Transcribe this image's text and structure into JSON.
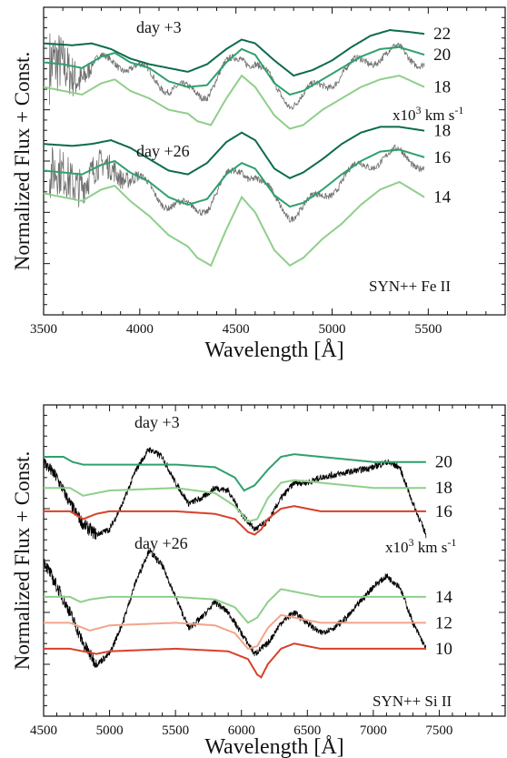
{
  "chart_data": [
    {
      "type": "line",
      "panel": "top",
      "ylabel": "Normalized Flux + Const.",
      "xlabel": "Wavelength [Å]",
      "xlim": [
        3500,
        5900
      ],
      "x_ticks": [
        3500,
        4000,
        4500,
        5000,
        5500
      ],
      "x_tick_labels": [
        "3500",
        "4000",
        "4500",
        "5000",
        "5500"
      ],
      "annotation": "SYN++ Fe II",
      "velocity_unit_base": "x10",
      "velocity_unit_exp": "3",
      "velocity_unit_tail": " km s",
      "velocity_unit_exp2": "-1",
      "epochs": [
        {
          "label": "day +3",
          "observed": {
            "color": "#707070",
            "x_range": [
              3530,
              5480
            ],
            "noisy_below": 3750
          },
          "models": [
            {
              "velocity": "22",
              "color": "#0d6b4e",
              "x": [
                3500,
                3650,
                3750,
                3850,
                3950,
                4050,
                4150,
                4250,
                4350,
                4450,
                4530,
                4600,
                4700,
                4800,
                4900,
                5000,
                5100,
                5200,
                5300,
                5400,
                5480
              ],
              "y": [
                0.93,
                0.92,
                0.93,
                0.9,
                0.85,
                0.82,
                0.8,
                0.78,
                0.82,
                0.9,
                0.95,
                0.93,
                0.84,
                0.76,
                0.79,
                0.84,
                0.91,
                0.97,
                1.0,
                0.99,
                0.98
              ]
            },
            {
              "velocity": "20",
              "color": "#2fa06d",
              "x": [
                3500,
                3600,
                3700,
                3800,
                3870,
                3950,
                4050,
                4150,
                4250,
                4350,
                4450,
                4530,
                4600,
                4700,
                4780,
                4850,
                4950,
                5050,
                5150,
                5250,
                5350,
                5480
              ],
              "y": [
                0.83,
                0.82,
                0.8,
                0.86,
                0.88,
                0.83,
                0.8,
                0.73,
                0.7,
                0.71,
                0.83,
                0.9,
                0.87,
                0.72,
                0.66,
                0.68,
                0.74,
                0.8,
                0.86,
                0.9,
                0.91,
                0.87
              ]
            },
            {
              "velocity": "18",
              "color": "#8fcf8a",
              "x": [
                3500,
                3600,
                3700,
                3800,
                3870,
                3950,
                4050,
                4150,
                4250,
                4300,
                4370,
                4450,
                4530,
                4600,
                4700,
                4780,
                4850,
                4950,
                5050,
                5150,
                5250,
                5350,
                5480
              ],
              "y": [
                0.7,
                0.68,
                0.66,
                0.72,
                0.74,
                0.68,
                0.64,
                0.58,
                0.56,
                0.52,
                0.5,
                0.64,
                0.76,
                0.7,
                0.55,
                0.48,
                0.5,
                0.58,
                0.64,
                0.7,
                0.74,
                0.76,
                0.7
              ]
            }
          ]
        },
        {
          "label": "day +26",
          "observed": {
            "color": "#707070",
            "x_range": [
              3530,
              5480
            ],
            "noisy_below": 4000
          },
          "models": [
            {
              "velocity": "18",
              "color": "#0d6b4e",
              "x": [
                3500,
                3650,
                3750,
                3850,
                3950,
                4050,
                4150,
                4250,
                4350,
                4450,
                4530,
                4600,
                4700,
                4780,
                4850,
                4950,
                5050,
                5150,
                5250,
                5350,
                5480
              ],
              "y": [
                0.4,
                0.39,
                0.4,
                0.42,
                0.38,
                0.32,
                0.26,
                0.24,
                0.3,
                0.41,
                0.46,
                0.42,
                0.27,
                0.22,
                0.25,
                0.32,
                0.4,
                0.46,
                0.49,
                0.49,
                0.47
              ]
            },
            {
              "velocity": "16",
              "color": "#2fa06d",
              "x": [
                3500,
                3600,
                3700,
                3800,
                3870,
                3950,
                4050,
                4150,
                4250,
                4350,
                4450,
                4530,
                4600,
                4700,
                4780,
                4850,
                4950,
                5050,
                5150,
                5250,
                5350,
                5480
              ],
              "y": [
                0.26,
                0.25,
                0.24,
                0.29,
                0.31,
                0.25,
                0.2,
                0.12,
                0.08,
                0.11,
                0.24,
                0.3,
                0.27,
                0.13,
                0.07,
                0.09,
                0.16,
                0.24,
                0.31,
                0.36,
                0.37,
                0.33
              ]
            },
            {
              "velocity": "14",
              "color": "#8fcf8a",
              "x": [
                3500,
                3600,
                3700,
                3800,
                3870,
                3950,
                4050,
                4150,
                4250,
                4300,
                4370,
                4450,
                4530,
                4600,
                4700,
                4780,
                4850,
                4950,
                5050,
                5150,
                5250,
                5350,
                5480
              ],
              "y": [
                0.14,
                0.12,
                0.1,
                0.16,
                0.18,
                0.1,
                0.02,
                -0.08,
                -0.14,
                -0.2,
                -0.24,
                -0.05,
                0.12,
                0.04,
                -0.16,
                -0.24,
                -0.2,
                -0.1,
                -0.02,
                0.08,
                0.16,
                0.2,
                0.12
              ]
            }
          ]
        }
      ]
    },
    {
      "type": "line",
      "panel": "bottom",
      "ylabel": "Normalized Flux + Const.",
      "xlabel": "Wavelength [Å]",
      "xlim": [
        4500,
        8000
      ],
      "x_ticks": [
        4500,
        5000,
        5500,
        6000,
        6500,
        7000,
        7500
      ],
      "x_tick_labels": [
        "4500",
        "5000",
        "5500",
        "6000",
        "6500",
        "7000",
        "7500"
      ],
      "annotation": "SYN++ Si II",
      "velocity_unit_base": "x10",
      "velocity_unit_exp": "3",
      "velocity_unit_tail": " km s",
      "velocity_unit_exp2": "-1",
      "epochs": [
        {
          "label": "day +3",
          "observed": {
            "color": "#000000",
            "x": [
              4500,
              4600,
              4700,
              4800,
              4900,
              5000,
              5100,
              5200,
              5300,
              5400,
              5500,
              5600,
              5700,
              5800,
              5900,
              6000,
              6100,
              6200,
              6300,
              6400,
              6500,
              6600,
              6700,
              6800,
              6900,
              7000,
              7100,
              7200,
              7300,
              7400
            ],
            "y": [
              0.88,
              0.82,
              0.72,
              0.64,
              0.6,
              0.62,
              0.72,
              0.85,
              0.93,
              0.9,
              0.8,
              0.72,
              0.74,
              0.78,
              0.77,
              0.68,
              0.62,
              0.65,
              0.74,
              0.8,
              0.8,
              0.82,
              0.83,
              0.84,
              0.85,
              0.86,
              0.88,
              0.86,
              0.72,
              0.6
            ]
          },
          "models": [
            {
              "velocity": "20",
              "color": "#2fa06d",
              "x": [
                4500,
                4650,
                4720,
                4800,
                5000,
                5500,
                5800,
                5950,
                6020,
                6100,
                6200,
                6300,
                6400,
                6600,
                7000,
                7400
              ],
              "y": [
                0.9,
                0.9,
                0.88,
                0.87,
                0.87,
                0.87,
                0.86,
                0.82,
                0.77,
                0.79,
                0.85,
                0.9,
                0.91,
                0.9,
                0.88,
                0.88
              ]
            },
            {
              "velocity": "18",
              "color": "#8fcf8a",
              "x": [
                4500,
                4600,
                4700,
                4800,
                5000,
                5500,
                5800,
                5950,
                6050,
                6120,
                6200,
                6300,
                6400,
                6600,
                7000,
                7400
              ],
              "y": [
                0.78,
                0.78,
                0.78,
                0.75,
                0.77,
                0.78,
                0.76,
                0.71,
                0.65,
                0.66,
                0.74,
                0.8,
                0.81,
                0.8,
                0.78,
                0.78
              ]
            },
            {
              "velocity": "16",
              "color": "#d8402a",
              "x": [
                4500,
                4600,
                4700,
                4800,
                4900,
                5000,
                5500,
                5800,
                5950,
                6050,
                6100,
                6150,
                6200,
                6300,
                6400,
                6600,
                7000,
                7400
              ],
              "y": [
                0.69,
                0.69,
                0.69,
                0.66,
                0.68,
                0.69,
                0.69,
                0.68,
                0.66,
                0.61,
                0.6,
                0.62,
                0.66,
                0.7,
                0.71,
                0.69,
                0.69,
                0.69
              ]
            }
          ]
        },
        {
          "label": "day +26",
          "observed": {
            "color": "#000000",
            "x": [
              4500,
              4600,
              4700,
              4800,
              4900,
              5000,
              5100,
              5200,
              5300,
              5400,
              5500,
              5600,
              5700,
              5800,
              5900,
              6000,
              6100,
              6200,
              6300,
              6400,
              6500,
              6600,
              6700,
              6800,
              6900,
              7000,
              7100,
              7200,
              7300,
              7400
            ],
            "y": [
              0.5,
              0.4,
              0.3,
              0.18,
              0.1,
              0.14,
              0.26,
              0.42,
              0.54,
              0.48,
              0.36,
              0.24,
              0.28,
              0.34,
              0.3,
              0.22,
              0.14,
              0.18,
              0.26,
              0.3,
              0.26,
              0.22,
              0.24,
              0.28,
              0.34,
              0.4,
              0.44,
              0.4,
              0.26,
              0.16
            ]
          },
          "models": [
            {
              "velocity": "14",
              "color": "#8fcf8a",
              "x": [
                4500,
                4700,
                4780,
                4850,
                5000,
                5500,
                5800,
                5950,
                6050,
                6120,
                6200,
                6300,
                6400,
                6600,
                7000,
                7400
              ],
              "y": [
                0.36,
                0.36,
                0.34,
                0.35,
                0.36,
                0.36,
                0.35,
                0.32,
                0.26,
                0.28,
                0.34,
                0.39,
                0.38,
                0.36,
                0.36,
                0.36
              ]
            },
            {
              "velocity": "12",
              "color": "#f2a58a",
              "x": [
                4500,
                4700,
                4800,
                4850,
                5000,
                5500,
                5800,
                5950,
                6050,
                6120,
                6200,
                6300,
                6400,
                6600,
                7000,
                7400
              ],
              "y": [
                0.26,
                0.26,
                0.24,
                0.23,
                0.25,
                0.26,
                0.25,
                0.22,
                0.16,
                0.17,
                0.24,
                0.29,
                0.28,
                0.26,
                0.26,
                0.26
              ]
            },
            {
              "velocity": "10",
              "color": "#d8402a",
              "x": [
                4500,
                4700,
                4800,
                4900,
                5000,
                5500,
                5900,
                6050,
                6120,
                6150,
                6200,
                6300,
                6400,
                6600,
                7000,
                7400
              ],
              "y": [
                0.16,
                0.16,
                0.15,
                0.14,
                0.15,
                0.16,
                0.15,
                0.12,
                0.06,
                0.05,
                0.1,
                0.16,
                0.18,
                0.16,
                0.16,
                0.16
              ]
            }
          ]
        }
      ]
    }
  ]
}
